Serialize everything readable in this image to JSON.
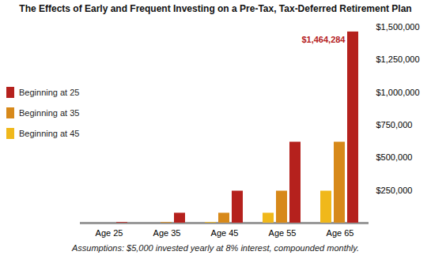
{
  "chart_data": {
    "type": "bar",
    "title": "The Effects of Early and Frequent Investing on a Pre-Tax, Tax-Deferred Retirement Plan",
    "caption": "Assumptions: $5,000 invested yearly at 8% interest, compounded monthly.",
    "categories": [
      "Age 25",
      "Age 35",
      "Age 45",
      "Age 55",
      "Age 65"
    ],
    "series": [
      {
        "name": "Beginning at 25",
        "color": "#b5211d",
        "values": [
          5000,
          76000,
          245000,
          620000,
          1464284
        ]
      },
      {
        "name": "Beginning at 35",
        "color": "#d7891a",
        "values": [
          null,
          5000,
          76000,
          245000,
          620000
        ]
      },
      {
        "name": "Beginning at 45",
        "color": "#f0b81b",
        "values": [
          null,
          null,
          5000,
          76000,
          245000
        ]
      }
    ],
    "ylim": [
      0,
      1500000
    ],
    "yticks": [
      {
        "value": 250000,
        "label": "$250,000"
      },
      {
        "value": 500000,
        "label": "$500,000"
      },
      {
        "value": 750000,
        "label": "$750,000"
      },
      {
        "value": 1000000,
        "label": "$1,000,000"
      },
      {
        "value": 1250000,
        "label": "$1,250,000"
      },
      {
        "value": 1500000,
        "label": "$1,500,000"
      }
    ],
    "legend": "left",
    "grid": false,
    "annotations": [
      {
        "text": "$1,464,284",
        "category": "Age 65",
        "series": "Beginning at 25"
      }
    ]
  }
}
